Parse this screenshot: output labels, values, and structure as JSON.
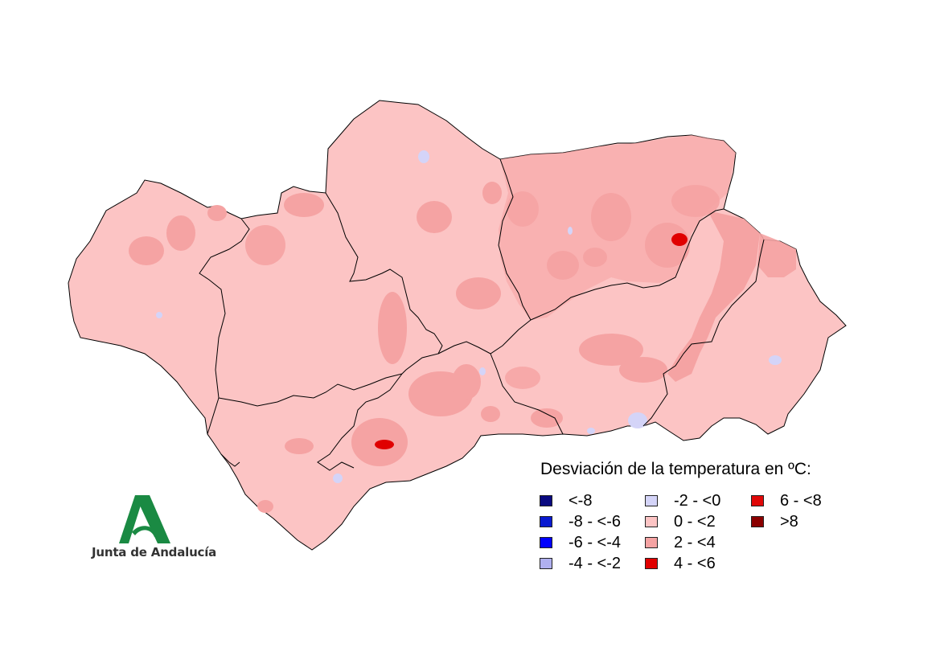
{
  "legend": {
    "title": "Desviación de la temperatura en ºC:",
    "classes": [
      {
        "label": "<-8",
        "color": "#0a0a80"
      },
      {
        "label": "-8 - <-6",
        "color": "#0a1ad0"
      },
      {
        "label": "-6 - <-4",
        "color": "#0000ff"
      },
      {
        "label": "-4 - <-2",
        "color": "#b0b0f0"
      },
      {
        "label": "-2 - <0",
        "color": "#d4d4f8"
      },
      {
        "label": "0 - <2",
        "color": "#fcc4c4"
      },
      {
        "label": "2 - <4",
        "color": "#f5a3a3"
      },
      {
        "label": "4 - <6",
        "color": "#e00000"
      },
      {
        "label": "6 - <8",
        "color": "#e00808"
      },
      {
        "label": ">8",
        "color": "#8b0000"
      }
    ]
  },
  "logo": {
    "text": "Junta de Andalucía",
    "color": "#1a8a43"
  },
  "map": {
    "base_color": "#fcc4c4",
    "warm_color": "#f5a3a3",
    "hot_color": "#e00000",
    "cool_color": "#d4d4f8",
    "border_color": "#000000"
  }
}
